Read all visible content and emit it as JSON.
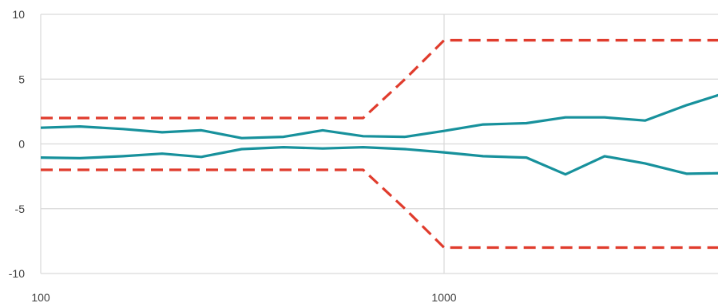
{
  "chart_data": {
    "type": "line",
    "title": "",
    "xlabel": "",
    "ylabel": "",
    "x_scale": "log",
    "xlim": [
      100,
      6300
    ],
    "ylim": [
      -10,
      10
    ],
    "grid": "major gridlines on both axes",
    "legend": "none",
    "x_ticks": [
      {
        "value": 100,
        "label": "100"
      },
      {
        "value": 1000,
        "label": "1000"
      }
    ],
    "y_ticks": [
      {
        "value": 10,
        "label": "10"
      },
      {
        "value": 5,
        "label": "5"
      },
      {
        "value": 0,
        "label": "0"
      },
      {
        "value": -5,
        "label": "-5"
      },
      {
        "value": -10,
        "label": "-10"
      }
    ],
    "series": [
      {
        "role": "upper limit",
        "color": "#e03c2d",
        "style": "dashed",
        "points": [
          [
            100,
            2
          ],
          [
            630,
            2
          ],
          [
            800,
            5
          ],
          [
            1000,
            8
          ],
          [
            6300,
            8
          ]
        ]
      },
      {
        "role": "lower limit",
        "color": "#e03c2d",
        "style": "dashed",
        "points": [
          [
            100,
            -2
          ],
          [
            630,
            -2
          ],
          [
            800,
            -5
          ],
          [
            1000,
            -8
          ],
          [
            6300,
            -8
          ]
        ]
      },
      {
        "role": "measured upper",
        "color": "#17919c",
        "style": "solid",
        "points": [
          [
            100,
            1.25
          ],
          [
            125,
            1.35
          ],
          [
            160,
            1.15
          ],
          [
            200,
            0.9
          ],
          [
            250,
            1.05
          ],
          [
            315,
            0.45
          ],
          [
            400,
            0.55
          ],
          [
            500,
            1.05
          ],
          [
            630,
            0.6
          ],
          [
            800,
            0.55
          ],
          [
            1000,
            1.0
          ],
          [
            1250,
            1.5
          ],
          [
            1600,
            1.6
          ],
          [
            2000,
            2.05
          ],
          [
            2500,
            2.05
          ],
          [
            3150,
            1.8
          ],
          [
            4000,
            3.0
          ],
          [
            5000,
            3.95
          ]
        ]
      },
      {
        "role": "measured lower",
        "color": "#17919c",
        "style": "solid",
        "points": [
          [
            100,
            -1.05
          ],
          [
            125,
            -1.1
          ],
          [
            160,
            -0.95
          ],
          [
            200,
            -0.75
          ],
          [
            250,
            -1.0
          ],
          [
            315,
            -0.4
          ],
          [
            400,
            -0.25
          ],
          [
            500,
            -0.35
          ],
          [
            630,
            -0.25
          ],
          [
            800,
            -0.4
          ],
          [
            1000,
            -0.65
          ],
          [
            1250,
            -0.95
          ],
          [
            1600,
            -1.05
          ],
          [
            2000,
            -2.35
          ],
          [
            2500,
            -0.95
          ],
          [
            3150,
            -1.5
          ],
          [
            4000,
            -2.3
          ],
          [
            5000,
            -2.25
          ]
        ]
      }
    ]
  }
}
